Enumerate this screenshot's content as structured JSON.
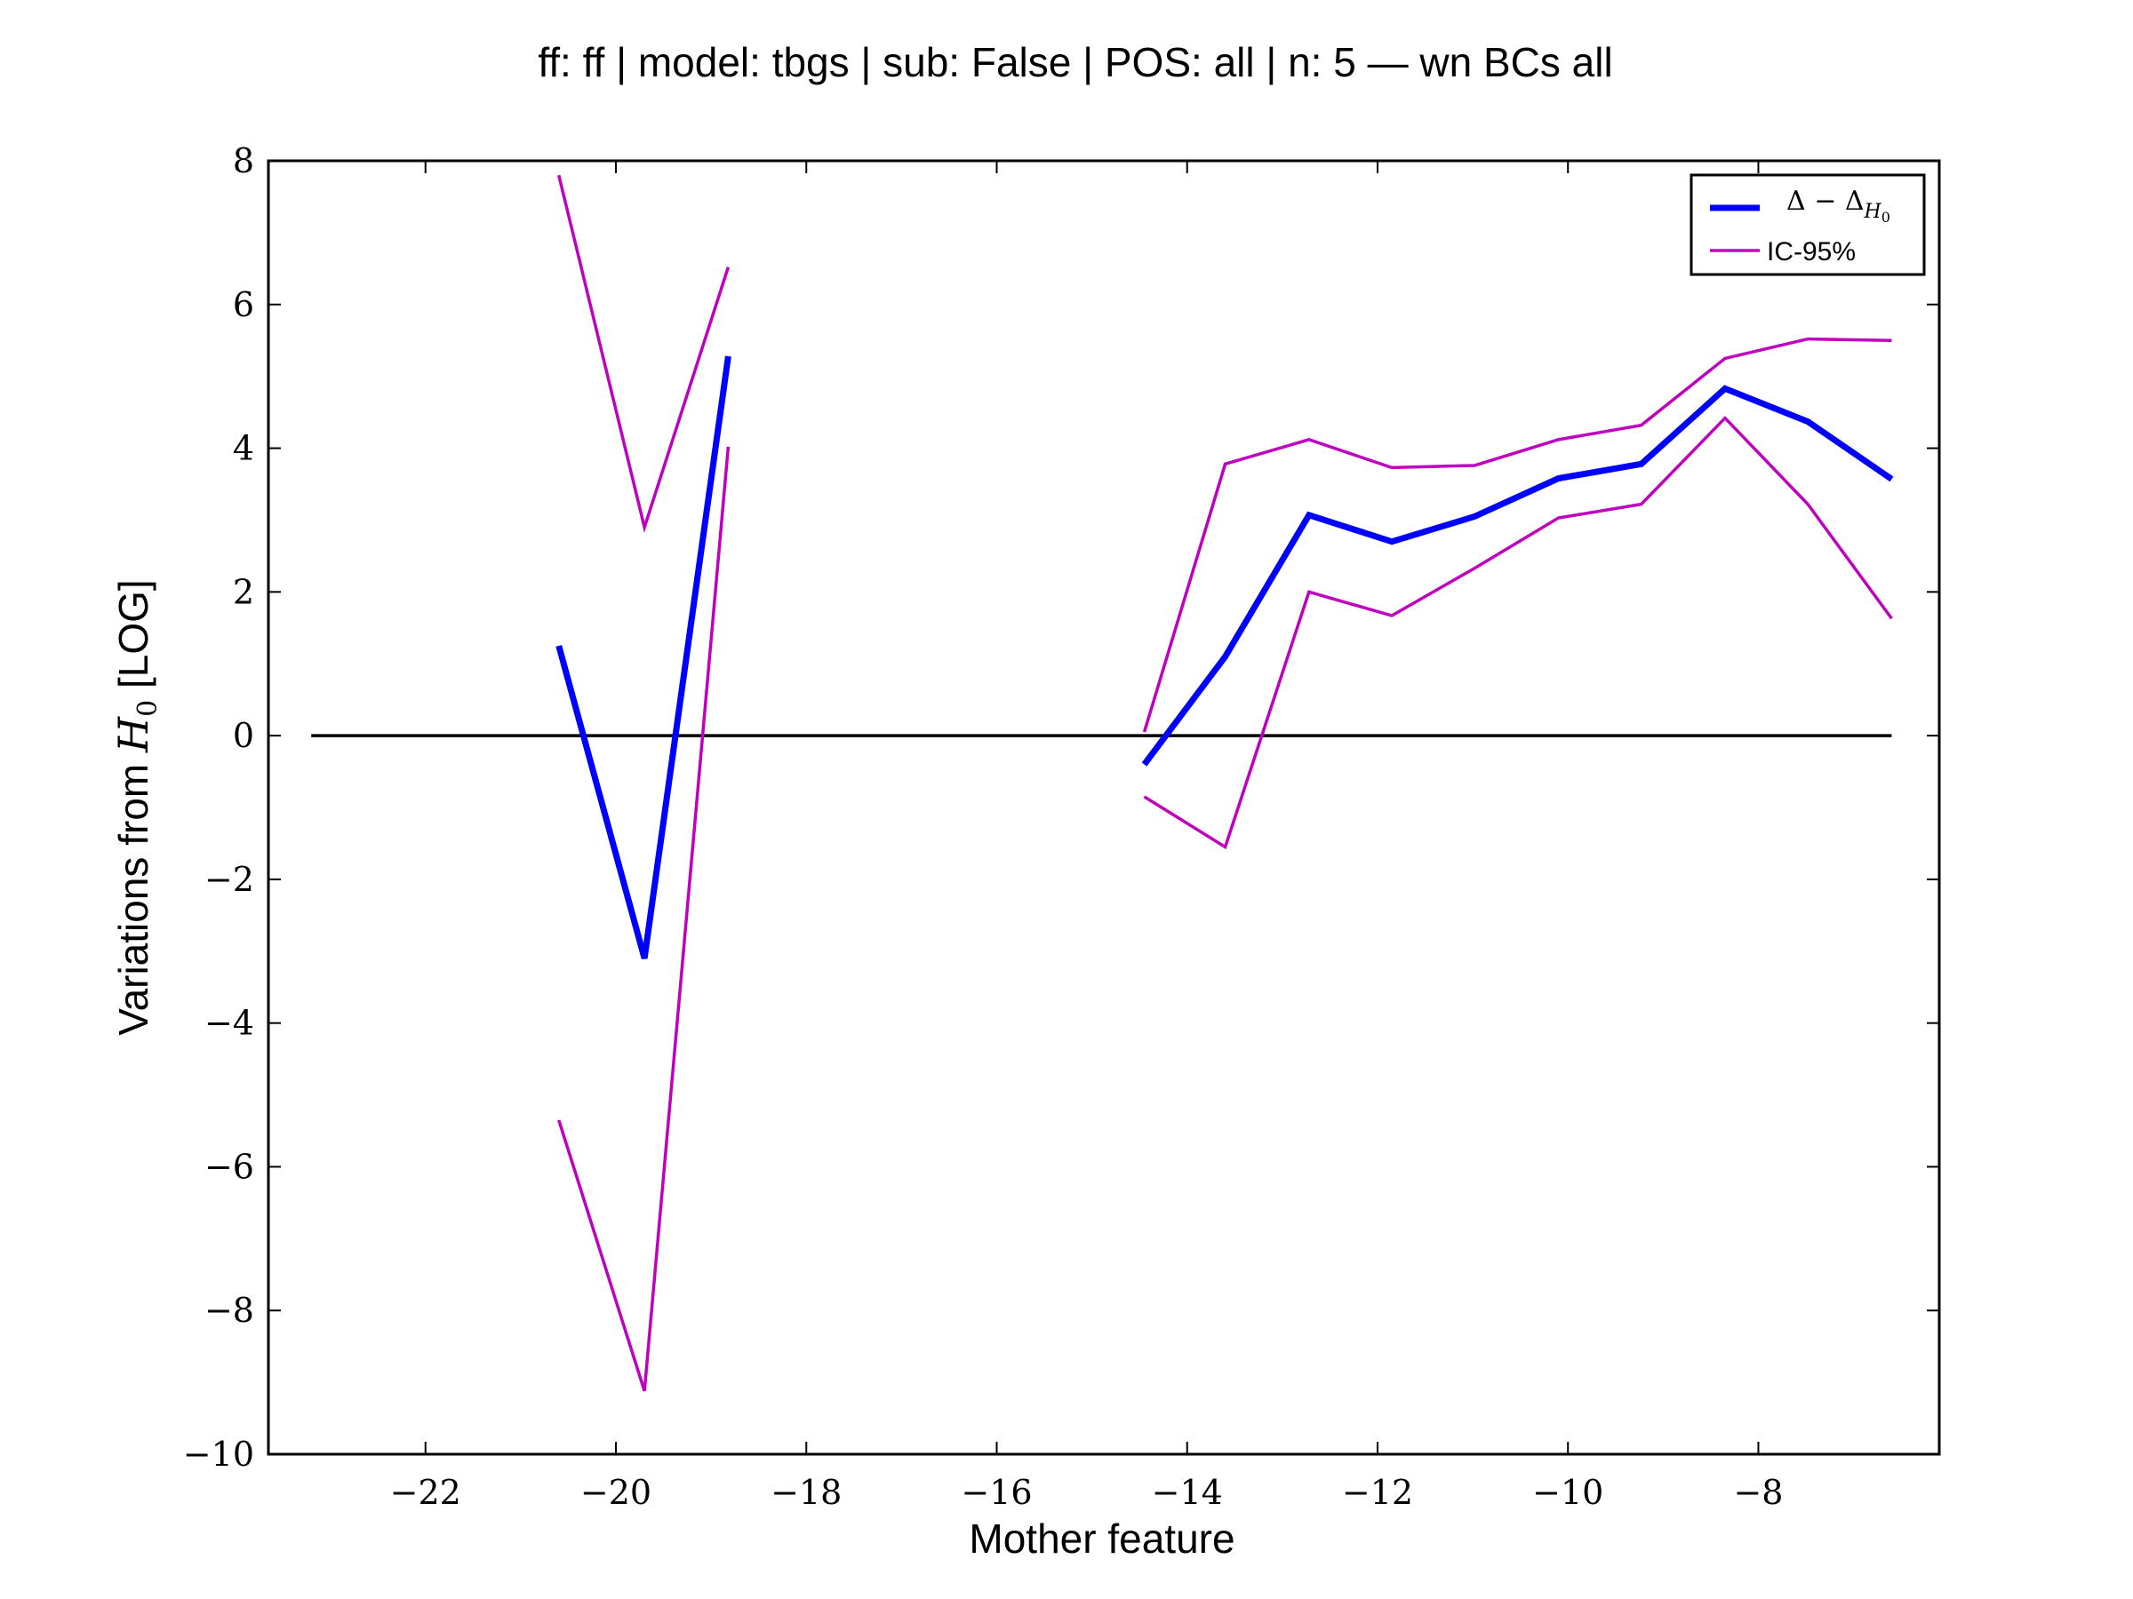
{
  "chart_data": {
    "type": "line",
    "title": "ff: ff | model: tbgs | sub: False | POS: all | n: 5 — wn BCs all",
    "xlabel": "Mother feature",
    "ylabel_prefix": "Variations from ",
    "ylabel_symbol": "H",
    "ylabel_subscript": "0",
    "ylabel_suffix": " [LOG]",
    "xlim": [
      -23.65,
      -6.1
    ],
    "ylim": [
      -10,
      8
    ],
    "xticks": [
      -22,
      -20,
      -18,
      -16,
      -14,
      -12,
      -10,
      -8
    ],
    "xtick_labels": [
      "−22",
      "−20",
      "−18",
      "−16",
      "−14",
      "−12",
      "−10",
      "−8"
    ],
    "yticks": [
      8,
      6,
      4,
      2,
      0,
      -2,
      -4,
      -6,
      -8,
      -10
    ],
    "ytick_labels": [
      "8",
      "6",
      "4",
      "2",
      "0",
      "−2",
      "−4",
      "−6",
      "−8",
      "−10"
    ],
    "grid": false,
    "legend_position": "upper right",
    "reference_line": {
      "y": 0,
      "x_range": [
        -23.2,
        -6.6
      ],
      "color": "#000000"
    },
    "series": [
      {
        "name": "Δ − Δ_{H0}",
        "legend_main": "Δ − Δ",
        "legend_sub": "H",
        "legend_sub2": "0",
        "color": "#0000ff",
        "role": "estimate",
        "segments": [
          {
            "x": [
              -20.6,
              -19.7,
              -18.82
            ],
            "y": [
              1.25,
              -3.1,
              5.28
            ]
          },
          {
            "x": [
              -14.45,
              -13.6,
              -12.72,
              -11.85,
              -10.98,
              -10.1,
              -9.23,
              -8.35,
              -7.48,
              -6.6
            ],
            "y": [
              -0.4,
              1.1,
              3.07,
              2.7,
              3.05,
              3.58,
              3.78,
              4.83,
              4.37,
              3.57
            ]
          }
        ]
      },
      {
        "name": "IC-95%",
        "color": "#bf00bf",
        "role": "upper",
        "segments": [
          {
            "x": [
              -20.6,
              -19.7,
              -18.82
            ],
            "y": [
              7.8,
              2.9,
              6.52
            ]
          },
          {
            "x": [
              -14.45,
              -13.6,
              -12.72,
              -11.85,
              -10.98,
              -10.1,
              -9.23,
              -8.35,
              -7.48,
              -6.6
            ],
            "y": [
              0.05,
              3.78,
              4.12,
              3.73,
              3.76,
              4.12,
              4.32,
              5.25,
              5.52,
              5.5
            ]
          }
        ]
      },
      {
        "name": "IC-95%",
        "color": "#bf00bf",
        "role": "lower",
        "segments": [
          {
            "x": [
              -20.6,
              -19.7,
              -18.82
            ],
            "y": [
              -5.35,
              -9.12,
              4.02
            ]
          },
          {
            "x": [
              -14.45,
              -13.6,
              -12.72,
              -11.85,
              -10.98,
              -10.1,
              -9.23,
              -8.35,
              -7.48,
              -6.6
            ],
            "y": [
              -0.85,
              -1.55,
              2.0,
              1.67,
              2.33,
              3.03,
              3.22,
              4.42,
              3.22,
              1.63
            ]
          }
        ]
      }
    ],
    "legend": [
      {
        "label": "Δ − Δ_{H0}",
        "color": "#0000ff"
      },
      {
        "label": "IC-95%",
        "color": "#bf00bf"
      }
    ]
  }
}
